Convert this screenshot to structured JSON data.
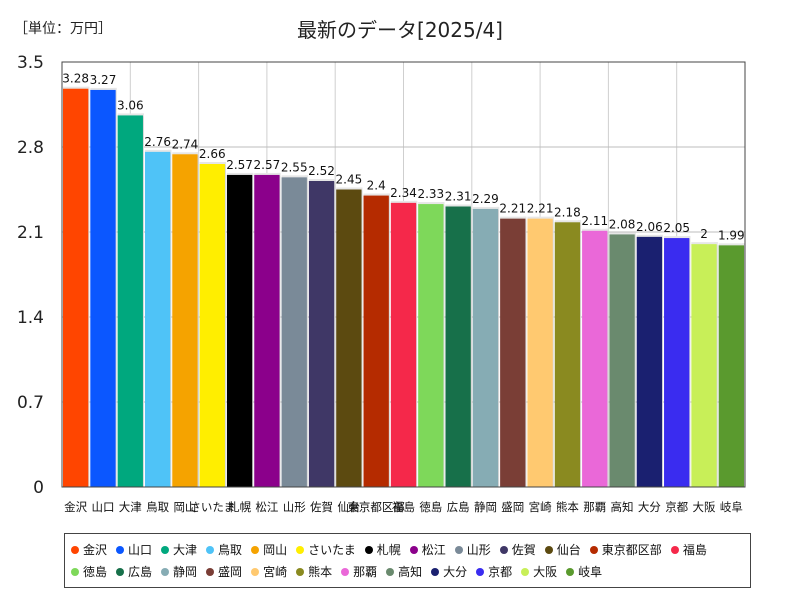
{
  "unit_label": "［単位：万円］",
  "chart_data": {
    "type": "bar",
    "title": "最新のデータ[2025/4]",
    "ylabel": "［単位：万円］",
    "xlabel": "",
    "ylim": [
      0,
      3.5
    ],
    "yticks": [
      "0",
      "0.7",
      "1.4",
      "2.1",
      "2.8",
      "3.5"
    ],
    "categories": [
      "金沢",
      "山口",
      "大津",
      "鳥取",
      "岡山",
      "さいたま",
      "札幌",
      "松江",
      "山形",
      "佐賀",
      "仙台",
      "東京都区部",
      "福島",
      "徳島",
      "広島",
      "静岡",
      "盛岡",
      "宮崎",
      "熊本",
      "那覇",
      "高知",
      "大分",
      "京都",
      "大阪",
      "岐阜"
    ],
    "values": [
      3.28,
      3.27,
      3.06,
      2.76,
      2.74,
      2.66,
      2.57,
      2.57,
      2.55,
      2.52,
      2.45,
      2.4,
      2.34,
      2.33,
      2.31,
      2.29,
      2.21,
      2.21,
      2.18,
      2.11,
      2.08,
      2.06,
      2.05,
      2,
      1.99
    ],
    "value_labels": [
      "3.28",
      "3.27",
      "3.06",
      "2.76",
      "2.74",
      "2.66",
      "2.57",
      "2.57",
      "2.55",
      "2.52",
      "2.45",
      "2.4",
      "2.34",
      "2.33",
      "2.31",
      "2.29",
      "2.21",
      "2.21",
      "2.18",
      "2.11",
      "2.08",
      "2.06",
      "2.05",
      "2",
      "1.99"
    ],
    "colors": [
      "#ff4500",
      "#0b57ff",
      "#00a87e",
      "#4fc3f7",
      "#f5a300",
      "#ffee00",
      "#000000",
      "#8b008b",
      "#7a8a98",
      "#3f3766",
      "#5c4a10",
      "#b52b00",
      "#f5284a",
      "#7ed85a",
      "#17704a",
      "#86acb4",
      "#7a3e36",
      "#ffc970",
      "#8a8a20",
      "#ea68d8",
      "#6a8a6e",
      "#1a2070",
      "#3a2cf0",
      "#c8ef58",
      "#5a9a2e"
    ],
    "legend_position": "bottom",
    "grid": true
  }
}
